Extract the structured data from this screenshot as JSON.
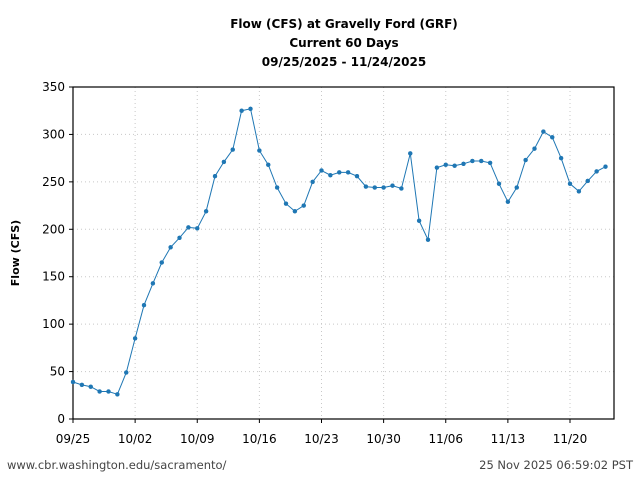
{
  "chart_data": {
    "type": "line",
    "title": "Flow (CFS) at Gravelly Ford (GRF)",
    "subtitle": "Current 60 Days",
    "date_range": "09/25/2025 - 11/24/2025",
    "xlabel": "",
    "ylabel": "Flow (CFS)",
    "ylim": [
      0,
      350
    ],
    "yticks": [
      0,
      50,
      100,
      150,
      200,
      250,
      300,
      350
    ],
    "xticks": [
      "09/25",
      "10/02",
      "10/09",
      "10/16",
      "10/23",
      "10/30",
      "11/06",
      "11/13",
      "11/20"
    ],
    "grid": true,
    "legend": null,
    "series": [
      {
        "name": "Flow (CFS)",
        "color": "#1f77b4",
        "x": [
          "09/25",
          "09/26",
          "09/27",
          "09/28",
          "09/29",
          "09/30",
          "10/01",
          "10/02",
          "10/03",
          "10/04",
          "10/05",
          "10/06",
          "10/07",
          "10/08",
          "10/09",
          "10/10",
          "10/11",
          "10/12",
          "10/13",
          "10/14",
          "10/15",
          "10/16",
          "10/17",
          "10/18",
          "10/19",
          "10/20",
          "10/21",
          "10/22",
          "10/23",
          "10/24",
          "10/25",
          "10/26",
          "10/27",
          "10/28",
          "10/29",
          "10/30",
          "10/31",
          "11/01",
          "11/02",
          "11/03",
          "11/04",
          "11/05",
          "11/06",
          "11/07",
          "11/08",
          "11/09",
          "11/10",
          "11/11",
          "11/12",
          "11/13",
          "11/14",
          "11/15",
          "11/16",
          "11/17",
          "11/18",
          "11/19",
          "11/20",
          "11/21",
          "11/22",
          "11/23",
          "11/24"
        ],
        "values": [
          39,
          36,
          34,
          29,
          29,
          26,
          49,
          85,
          120,
          143,
          165,
          181,
          191,
          202,
          201,
          219,
          256,
          271,
          284,
          325,
          327,
          283,
          268,
          244,
          227,
          219,
          225,
          250,
          262,
          257,
          260,
          260,
          256,
          245,
          244,
          244,
          246,
          243,
          280,
          209,
          189,
          265,
          268,
          267,
          269,
          272,
          272,
          270,
          248,
          229,
          244,
          273,
          285,
          303,
          297,
          275,
          248,
          240,
          251,
          261,
          266
        ]
      }
    ]
  },
  "footer": {
    "source_url": "www.cbr.washington.edu/sacramento/",
    "timestamp": "25 Nov 2025 06:59:02 PST"
  },
  "style": {
    "line_color": "#1f77b4",
    "grid_color": "#c8c8c8",
    "axis_color": "#000000"
  }
}
